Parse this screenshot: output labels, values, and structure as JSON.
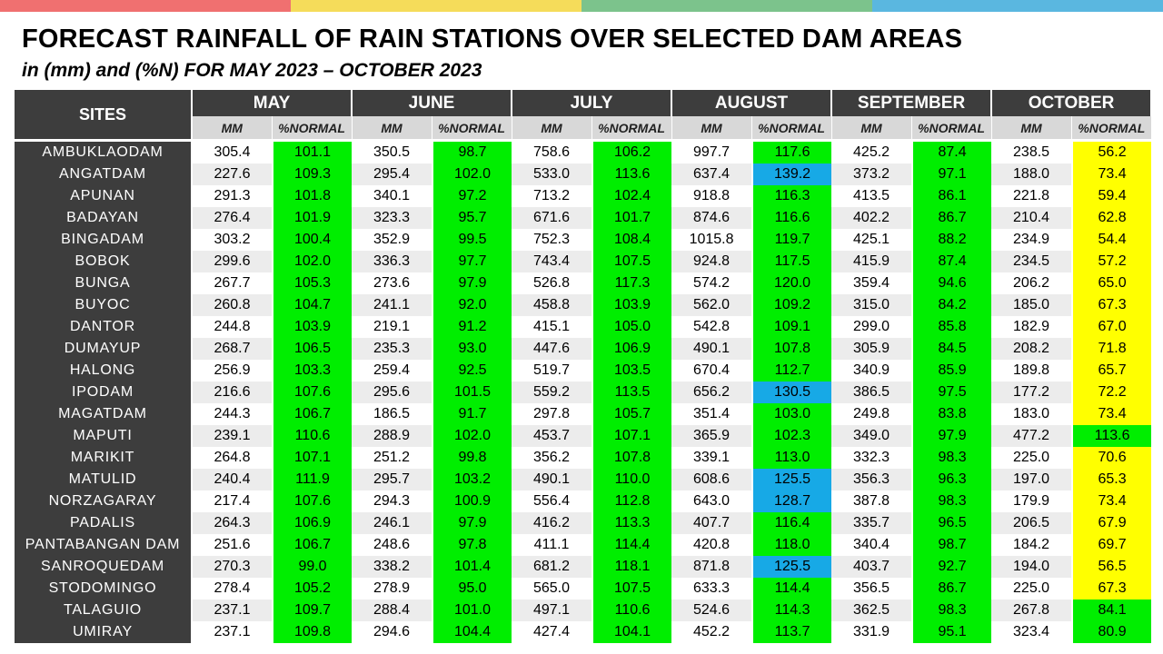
{
  "top_bar_colors": [
    "#f07070",
    "#f5dc5a",
    "#7cc38c",
    "#5ab7e0"
  ],
  "title": "FORECAST RAINFALL OF RAIN STATIONS OVER SELECTED DAM AREAS",
  "subtitle": "in (mm) and (%N) FOR MAY 2023 – OCTOBER 2023",
  "colors": {
    "header": "#3d3d3d",
    "subheader": "#d8d8d8",
    "near_normal": "#00ee00",
    "above_normal": "#17a9e6",
    "below_normal": "#ffff00"
  },
  "table": {
    "sites_header": "SITES",
    "months": [
      "MAY",
      "JUNE",
      "JULY",
      "AUGUST",
      "SEPTEMBER",
      "OCTOBER"
    ],
    "sub_headers": [
      "MM",
      "%NORMAL"
    ],
    "rows": [
      {
        "site": "AMBUKLAODAM",
        "values": [
          [
            "305.4",
            "101.1"
          ],
          [
            "350.5",
            "98.7"
          ],
          [
            "758.6",
            "106.2"
          ],
          [
            "997.7",
            "117.6"
          ],
          [
            "425.2",
            "87.4"
          ],
          [
            "238.5",
            "56.2"
          ]
        ],
        "colors": [
          "green",
          "green",
          "green",
          "green",
          "green",
          "yellow"
        ]
      },
      {
        "site": "ANGATDAM",
        "values": [
          [
            "227.6",
            "109.3"
          ],
          [
            "295.4",
            "102.0"
          ],
          [
            "533.0",
            "113.6"
          ],
          [
            "637.4",
            "139.2"
          ],
          [
            "373.2",
            "97.1"
          ],
          [
            "188.0",
            "73.4"
          ]
        ],
        "colors": [
          "green",
          "green",
          "green",
          "blue",
          "green",
          "yellow"
        ]
      },
      {
        "site": "APUNAN",
        "values": [
          [
            "291.3",
            "101.8"
          ],
          [
            "340.1",
            "97.2"
          ],
          [
            "713.2",
            "102.4"
          ],
          [
            "918.8",
            "116.3"
          ],
          [
            "413.5",
            "86.1"
          ],
          [
            "221.8",
            "59.4"
          ]
        ],
        "colors": [
          "green",
          "green",
          "green",
          "green",
          "green",
          "yellow"
        ]
      },
      {
        "site": "BADAYAN",
        "values": [
          [
            "276.4",
            "101.9"
          ],
          [
            "323.3",
            "95.7"
          ],
          [
            "671.6",
            "101.7"
          ],
          [
            "874.6",
            "116.6"
          ],
          [
            "402.2",
            "86.7"
          ],
          [
            "210.4",
            "62.8"
          ]
        ],
        "colors": [
          "green",
          "green",
          "green",
          "green",
          "green",
          "yellow"
        ]
      },
      {
        "site": "BINGADAM",
        "values": [
          [
            "303.2",
            "100.4"
          ],
          [
            "352.9",
            "99.5"
          ],
          [
            "752.3",
            "108.4"
          ],
          [
            "1015.8",
            "119.7"
          ],
          [
            "425.1",
            "88.2"
          ],
          [
            "234.9",
            "54.4"
          ]
        ],
        "colors": [
          "green",
          "green",
          "green",
          "green",
          "green",
          "yellow"
        ]
      },
      {
        "site": "BOBOK",
        "values": [
          [
            "299.6",
            "102.0"
          ],
          [
            "336.3",
            "97.7"
          ],
          [
            "743.4",
            "107.5"
          ],
          [
            "924.8",
            "117.5"
          ],
          [
            "415.9",
            "87.4"
          ],
          [
            "234.5",
            "57.2"
          ]
        ],
        "colors": [
          "green",
          "green",
          "green",
          "green",
          "green",
          "yellow"
        ]
      },
      {
        "site": "BUNGA",
        "values": [
          [
            "267.7",
            "105.3"
          ],
          [
            "273.6",
            "97.9"
          ],
          [
            "526.8",
            "117.3"
          ],
          [
            "574.2",
            "120.0"
          ],
          [
            "359.4",
            "94.6"
          ],
          [
            "206.2",
            "65.0"
          ]
        ],
        "colors": [
          "green",
          "green",
          "green",
          "green",
          "green",
          "yellow"
        ]
      },
      {
        "site": "BUYOC",
        "values": [
          [
            "260.8",
            "104.7"
          ],
          [
            "241.1",
            "92.0"
          ],
          [
            "458.8",
            "103.9"
          ],
          [
            "562.0",
            "109.2"
          ],
          [
            "315.0",
            "84.2"
          ],
          [
            "185.0",
            "67.3"
          ]
        ],
        "colors": [
          "green",
          "green",
          "green",
          "green",
          "green",
          "yellow"
        ]
      },
      {
        "site": "DANTOR",
        "values": [
          [
            "244.8",
            "103.9"
          ],
          [
            "219.1",
            "91.2"
          ],
          [
            "415.1",
            "105.0"
          ],
          [
            "542.8",
            "109.1"
          ],
          [
            "299.0",
            "85.8"
          ],
          [
            "182.9",
            "67.0"
          ]
        ],
        "colors": [
          "green",
          "green",
          "green",
          "green",
          "green",
          "yellow"
        ]
      },
      {
        "site": "DUMAYUP",
        "values": [
          [
            "268.7",
            "106.5"
          ],
          [
            "235.3",
            "93.0"
          ],
          [
            "447.6",
            "106.9"
          ],
          [
            "490.1",
            "107.8"
          ],
          [
            "305.9",
            "84.5"
          ],
          [
            "208.2",
            "71.8"
          ]
        ],
        "colors": [
          "green",
          "green",
          "green",
          "green",
          "green",
          "yellow"
        ]
      },
      {
        "site": "HALONG",
        "values": [
          [
            "256.9",
            "103.3"
          ],
          [
            "259.4",
            "92.5"
          ],
          [
            "519.7",
            "103.5"
          ],
          [
            "670.4",
            "112.7"
          ],
          [
            "340.9",
            "85.9"
          ],
          [
            "189.8",
            "65.7"
          ]
        ],
        "colors": [
          "green",
          "green",
          "green",
          "green",
          "green",
          "yellow"
        ]
      },
      {
        "site": "IPODAM",
        "values": [
          [
            "216.6",
            "107.6"
          ],
          [
            "295.6",
            "101.5"
          ],
          [
            "559.2",
            "113.5"
          ],
          [
            "656.2",
            "130.5"
          ],
          [
            "386.5",
            "97.5"
          ],
          [
            "177.2",
            "72.2"
          ]
        ],
        "colors": [
          "green",
          "green",
          "green",
          "blue",
          "green",
          "yellow"
        ]
      },
      {
        "site": "MAGATDAM",
        "values": [
          [
            "244.3",
            "106.7"
          ],
          [
            "186.5",
            "91.7"
          ],
          [
            "297.8",
            "105.7"
          ],
          [
            "351.4",
            "103.0"
          ],
          [
            "249.8",
            "83.8"
          ],
          [
            "183.0",
            "73.4"
          ]
        ],
        "colors": [
          "green",
          "green",
          "green",
          "green",
          "green",
          "yellow"
        ]
      },
      {
        "site": "MAPUTI",
        "values": [
          [
            "239.1",
            "110.6"
          ],
          [
            "288.9",
            "102.0"
          ],
          [
            "453.7",
            "107.1"
          ],
          [
            "365.9",
            "102.3"
          ],
          [
            "349.0",
            "97.9"
          ],
          [
            "477.2",
            "113.6"
          ]
        ],
        "colors": [
          "green",
          "green",
          "green",
          "green",
          "green",
          "green"
        ]
      },
      {
        "site": "MARIKIT",
        "values": [
          [
            "264.8",
            "107.1"
          ],
          [
            "251.2",
            "99.8"
          ],
          [
            "356.2",
            "107.8"
          ],
          [
            "339.1",
            "113.0"
          ],
          [
            "332.3",
            "98.3"
          ],
          [
            "225.0",
            "70.6"
          ]
        ],
        "colors": [
          "green",
          "green",
          "green",
          "green",
          "green",
          "yellow"
        ]
      },
      {
        "site": "MATULID",
        "values": [
          [
            "240.4",
            "111.9"
          ],
          [
            "295.7",
            "103.2"
          ],
          [
            "490.1",
            "110.0"
          ],
          [
            "608.6",
            "125.5"
          ],
          [
            "356.3",
            "96.3"
          ],
          [
            "197.0",
            "65.3"
          ]
        ],
        "colors": [
          "green",
          "green",
          "green",
          "blue",
          "green",
          "yellow"
        ]
      },
      {
        "site": "NORZAGARAY",
        "values": [
          [
            "217.4",
            "107.6"
          ],
          [
            "294.3",
            "100.9"
          ],
          [
            "556.4",
            "112.8"
          ],
          [
            "643.0",
            "128.7"
          ],
          [
            "387.8",
            "98.3"
          ],
          [
            "179.9",
            "73.4"
          ]
        ],
        "colors": [
          "green",
          "green",
          "green",
          "blue",
          "green",
          "yellow"
        ]
      },
      {
        "site": "PADALIS",
        "values": [
          [
            "264.3",
            "106.9"
          ],
          [
            "246.1",
            "97.9"
          ],
          [
            "416.2",
            "113.3"
          ],
          [
            "407.7",
            "116.4"
          ],
          [
            "335.7",
            "96.5"
          ],
          [
            "206.5",
            "67.9"
          ]
        ],
        "colors": [
          "green",
          "green",
          "green",
          "green",
          "green",
          "yellow"
        ]
      },
      {
        "site": "PANTABANGAN DAM",
        "values": [
          [
            "251.6",
            "106.7"
          ],
          [
            "248.6",
            "97.8"
          ],
          [
            "411.1",
            "114.4"
          ],
          [
            "420.8",
            "118.0"
          ],
          [
            "340.4",
            "98.7"
          ],
          [
            "184.2",
            "69.7"
          ]
        ],
        "colors": [
          "green",
          "green",
          "green",
          "green",
          "green",
          "yellow"
        ]
      },
      {
        "site": "SANROQUEDAM",
        "values": [
          [
            "270.3",
            "99.0"
          ],
          [
            "338.2",
            "101.4"
          ],
          [
            "681.2",
            "118.1"
          ],
          [
            "871.8",
            "125.5"
          ],
          [
            "403.7",
            "92.7"
          ],
          [
            "194.0",
            "56.5"
          ]
        ],
        "colors": [
          "green",
          "green",
          "green",
          "blue",
          "green",
          "yellow"
        ]
      },
      {
        "site": "STODOMINGO",
        "values": [
          [
            "278.4",
            "105.2"
          ],
          [
            "278.9",
            "95.0"
          ],
          [
            "565.0",
            "107.5"
          ],
          [
            "633.3",
            "114.4"
          ],
          [
            "356.5",
            "86.7"
          ],
          [
            "225.0",
            "67.3"
          ]
        ],
        "colors": [
          "green",
          "green",
          "green",
          "green",
          "green",
          "yellow"
        ]
      },
      {
        "site": "TALAGUIO",
        "values": [
          [
            "237.1",
            "109.7"
          ],
          [
            "288.4",
            "101.0"
          ],
          [
            "497.1",
            "110.6"
          ],
          [
            "524.6",
            "114.3"
          ],
          [
            "362.5",
            "98.3"
          ],
          [
            "267.8",
            "84.1"
          ]
        ],
        "colors": [
          "green",
          "green",
          "green",
          "green",
          "green",
          "green"
        ]
      },
      {
        "site": "UMIRAY",
        "values": [
          [
            "237.1",
            "109.8"
          ],
          [
            "294.6",
            "104.4"
          ],
          [
            "427.4",
            "104.1"
          ],
          [
            "452.2",
            "113.7"
          ],
          [
            "331.9",
            "95.1"
          ],
          [
            "323.4",
            "80.9"
          ]
        ],
        "colors": [
          "green",
          "green",
          "green",
          "green",
          "green",
          "green"
        ]
      }
    ]
  }
}
